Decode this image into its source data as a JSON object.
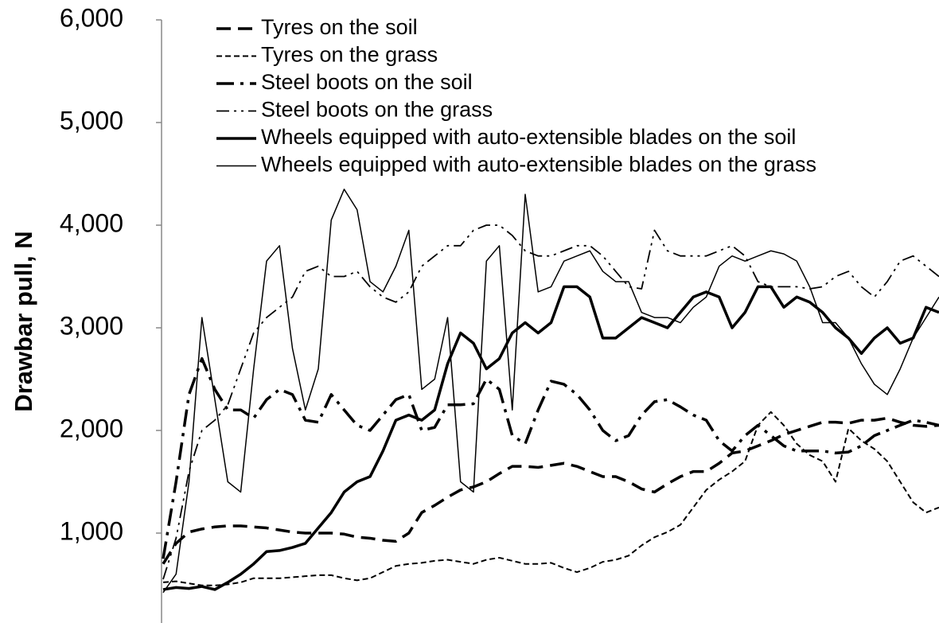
{
  "chart_data": {
    "type": "line",
    "y_label": "Drawbar pull, N",
    "categories": [
      null,
      null,
      null,
      null,
      null,
      null,
      null,
      null,
      null,
      null,
      null,
      null,
      null,
      null,
      null,
      null,
      null,
      null,
      null,
      null,
      null,
      null,
      null,
      null,
      null,
      null,
      null,
      null,
      null,
      null,
      null,
      null,
      null,
      null,
      null,
      null,
      null,
      null,
      null,
      null,
      null,
      null,
      null,
      null,
      null,
      null,
      null,
      null,
      null,
      null,
      null,
      null,
      null,
      null,
      null,
      null,
      null,
      null,
      null,
      null,
      null
    ],
    "ylim": [
      0,
      6000
    ],
    "yticks": [
      {
        "value": 1000,
        "label": "1,000"
      },
      {
        "value": 2000,
        "label": "2,000"
      },
      {
        "value": 3000,
        "label": "3,000"
      },
      {
        "value": 4000,
        "label": "4,000"
      },
      {
        "value": 5000,
        "label": "5,000"
      },
      {
        "value": 6000,
        "label": "6,000"
      }
    ],
    "series": [
      {
        "name": "Tyres on the soil",
        "color": "#000000",
        "values": [
          700,
          900,
          1010,
          1040,
          1060,
          1070,
          1070,
          1060,
          1050,
          1030,
          1010,
          1000,
          1000,
          1000,
          990,
          960,
          950,
          930,
          920,
          1000,
          1200,
          1270,
          1350,
          1420,
          1450,
          1500,
          1580,
          1650,
          1650,
          1640,
          1660,
          1680,
          1650,
          1600,
          1550,
          1550,
          1500,
          1430,
          1400,
          1480,
          1550,
          1600,
          1600,
          1680,
          1780,
          1800,
          1850,
          1900,
          1960,
          2000,
          2040,
          2080,
          2080,
          2070,
          2100,
          2100,
          2120,
          2080,
          2050,
          2040,
          2050
        ]
      },
      {
        "name": "Tyres on the grass",
        "color": "#000000",
        "values": [
          520,
          530,
          510,
          490,
          490,
          500,
          520,
          560,
          560,
          560,
          570,
          580,
          590,
          590,
          560,
          540,
          560,
          620,
          680,
          700,
          710,
          730,
          740,
          720,
          700,
          740,
          760,
          730,
          700,
          700,
          710,
          660,
          620,
          660,
          720,
          740,
          780,
          880,
          960,
          1010,
          1080,
          1250,
          1420,
          1520,
          1600,
          1700,
          2050,
          2180,
          2050,
          1870,
          1760,
          1700,
          1500,
          2020,
          1900,
          1820,
          1700,
          1500,
          1300,
          1200,
          1250
        ]
      },
      {
        "name": "Steel boots on the soil",
        "color": "#000000",
        "values": [
          750,
          1500,
          2350,
          2700,
          2400,
          2200,
          2200,
          2120,
          2300,
          2400,
          2350,
          2100,
          2080,
          2350,
          2200,
          2050,
          2000,
          2150,
          2300,
          2350,
          2000,
          2030,
          2250,
          2250,
          2260,
          2500,
          2400,
          1950,
          1870,
          2200,
          2480,
          2450,
          2350,
          2200,
          2000,
          1900,
          1950,
          2150,
          2280,
          2300,
          2230,
          2150,
          2100,
          1900,
          1800,
          1950,
          2050,
          1950,
          1850,
          1800,
          1800,
          1800,
          1780,
          1790,
          1850,
          1950,
          2000,
          2050,
          2100,
          2080,
          2050
        ]
      },
      {
        "name": "Steel boots on the grass",
        "color": "#000000",
        "values": [
          550,
          950,
          1600,
          2000,
          2100,
          2250,
          2600,
          2950,
          3100,
          3200,
          3300,
          3550,
          3600,
          3500,
          3500,
          3550,
          3400,
          3300,
          3250,
          3350,
          3600,
          3700,
          3800,
          3800,
          3950,
          4000,
          4000,
          3900,
          3750,
          3700,
          3700,
          3750,
          3800,
          3800,
          3700,
          3550,
          3400,
          3380,
          3950,
          3750,
          3700,
          3700,
          3700,
          3750,
          3800,
          3700,
          3450,
          3400,
          3400,
          3400,
          3380,
          3400,
          3500,
          3550,
          3400,
          3300,
          3450,
          3650,
          3700,
          3600,
          3500
        ]
      },
      {
        "name": "Wheels equipped with auto-extensible blades on the soil",
        "color": "#000000",
        "values": [
          450,
          470,
          460,
          480,
          450,
          520,
          600,
          700,
          820,
          830,
          860,
          900,
          1050,
          1200,
          1400,
          1500,
          1550,
          1800,
          2100,
          2150,
          2100,
          2200,
          2650,
          2950,
          2850,
          2600,
          2700,
          2950,
          3050,
          2950,
          3050,
          3400,
          3400,
          3300,
          2900,
          2900,
          3000,
          3100,
          3050,
          3000,
          3150,
          3300,
          3350,
          3300,
          3000,
          3150,
          3400,
          3400,
          3200,
          3300,
          3250,
          3150,
          3000,
          2900,
          2750,
          2900,
          3000,
          2850,
          2900,
          3200,
          3150
        ]
      },
      {
        "name": "Wheels equipped with auto-extensible blades on the grass",
        "color": "#000000",
        "values": [
          420,
          600,
          1500,
          3100,
          2300,
          1500,
          1400,
          2600,
          3650,
          3800,
          2800,
          2200,
          2600,
          4050,
          4350,
          4150,
          3450,
          3350,
          3600,
          3950,
          2400,
          2500,
          3100,
          1500,
          1400,
          3650,
          3800,
          2200,
          4300,
          3350,
          3400,
          3650,
          3700,
          3750,
          3550,
          3450,
          3450,
          3150,
          3100,
          3100,
          3050,
          3200,
          3300,
          3600,
          3700,
          3650,
          3700,
          3750,
          3720,
          3650,
          3400,
          3050,
          3050,
          2900,
          2650,
          2450,
          2350,
          2600,
          2900,
          3100,
          3300
        ]
      }
    ],
    "legend": "top-left"
  }
}
